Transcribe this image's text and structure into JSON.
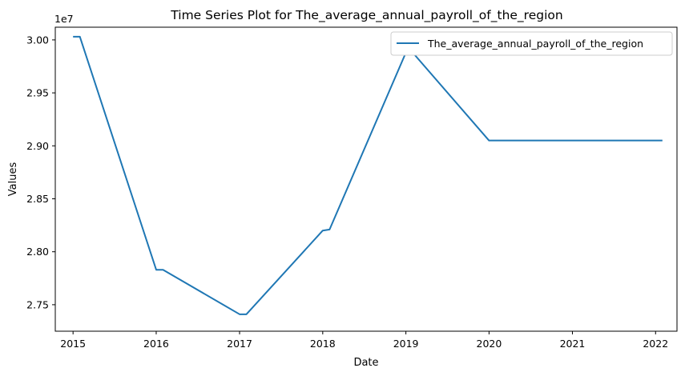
{
  "chart_data": {
    "type": "line",
    "title": "Time Series Plot for The_average_annual_payroll_of_the_region",
    "xlabel": "Date",
    "ylabel": "Values",
    "y_offset_label": "1e7",
    "x_ticks": [
      "2015",
      "2016",
      "2017",
      "2018",
      "2019",
      "2020",
      "2021",
      "2022"
    ],
    "y_ticks": [
      "2.75",
      "2.80",
      "2.85",
      "2.90",
      "2.95",
      "3.00"
    ],
    "xlim": [
      "2014-10-15",
      "2022-04-05"
    ],
    "ylim": [
      27250000,
      30120000
    ],
    "grid": false,
    "legend_position": "top-right",
    "colors": {
      "series": "#1f77b4",
      "axes": "#000000"
    },
    "series": [
      {
        "name": "The_average_annual_payroll_of_the_region",
        "points": [
          {
            "x": "2015-01-01",
            "y": 30030000
          },
          {
            "x": "2015-01-31",
            "y": 30030000
          },
          {
            "x": "2016-01-01",
            "y": 27830000
          },
          {
            "x": "2016-01-31",
            "y": 27830000
          },
          {
            "x": "2017-01-01",
            "y": 27410000
          },
          {
            "x": "2017-01-31",
            "y": 27410000
          },
          {
            "x": "2018-01-01",
            "y": 28200000
          },
          {
            "x": "2018-01-31",
            "y": 28210000
          },
          {
            "x": "2019-01-01",
            "y": 29880000
          },
          {
            "x": "2019-01-31",
            "y": 29880000
          },
          {
            "x": "2020-01-01",
            "y": 29050000
          },
          {
            "x": "2020-01-31",
            "y": 29050000
          },
          {
            "x": "2022-01-31",
            "y": 29050000
          }
        ]
      }
    ]
  }
}
